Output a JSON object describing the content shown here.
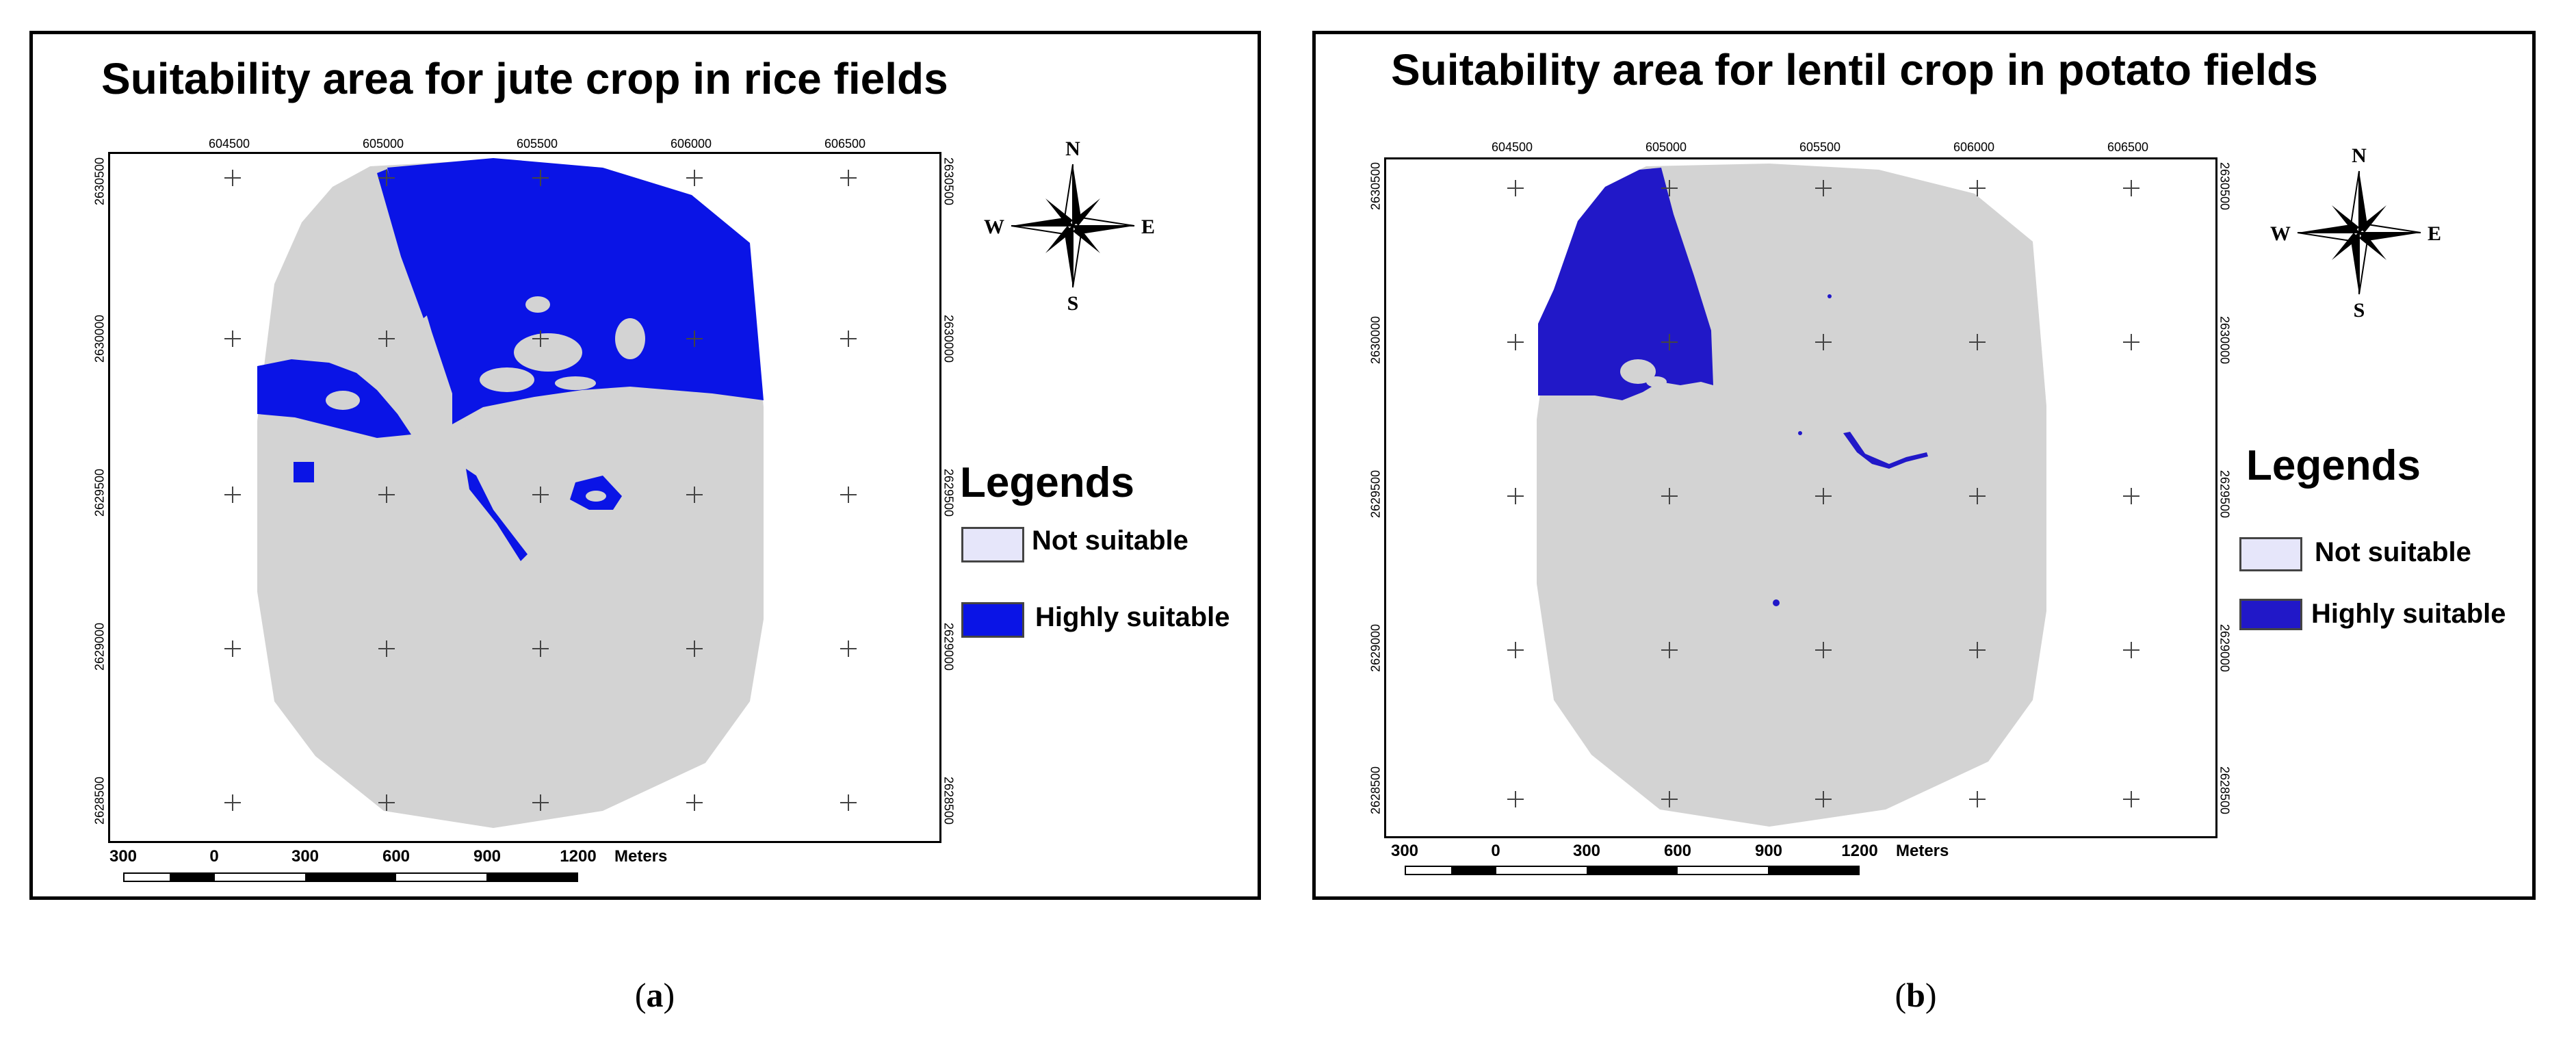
{
  "colors": {
    "suitable_a": "#0a14e6",
    "suitable_b": "#2118c8",
    "not_suitable_fill": "#d3d3d3",
    "legend_not_suitable": "#e6e6fa",
    "frame": "#000000"
  },
  "panels": [
    {
      "id": "a",
      "title": "Suitability area for jute crop in rice fields",
      "x_ticks": [
        "604500",
        "605000",
        "605500",
        "606000",
        "606500"
      ],
      "y_ticks": [
        "2630500",
        "2630000",
        "2629500",
        "2629000",
        "2628500"
      ],
      "compass": {
        "n": "N",
        "s": "S",
        "e": "E",
        "w": "W",
        "icon": "compass-rose-icon"
      },
      "legend": {
        "title": "Legends",
        "items": [
          {
            "label": "Not suitable",
            "color": "#e6e6fa"
          },
          {
            "label": "Highly suitable",
            "color": "#0a14e6"
          }
        ]
      },
      "scale": {
        "labels": [
          "300",
          "0",
          "300",
          "600",
          "900",
          "1200"
        ],
        "unit": "Meters"
      },
      "caption": "a"
    },
    {
      "id": "b",
      "title": "Suitability area for lentil crop in potato fields",
      "x_ticks": [
        "604500",
        "605000",
        "605500",
        "606000",
        "606500"
      ],
      "y_ticks": [
        "2630500",
        "2630000",
        "2629500",
        "2629000",
        "2628500"
      ],
      "compass": {
        "n": "N",
        "s": "S",
        "e": "E",
        "w": "W",
        "icon": "compass-rose-icon"
      },
      "legend": {
        "title": "Legends",
        "items": [
          {
            "label": "Not suitable",
            "color": "#e6e6fa"
          },
          {
            "label": "Highly suitable",
            "color": "#2118c8"
          }
        ]
      },
      "scale": {
        "labels": [
          "300",
          "0",
          "300",
          "600",
          "900",
          "1200"
        ],
        "unit": "Meters"
      },
      "caption": "b"
    }
  ]
}
